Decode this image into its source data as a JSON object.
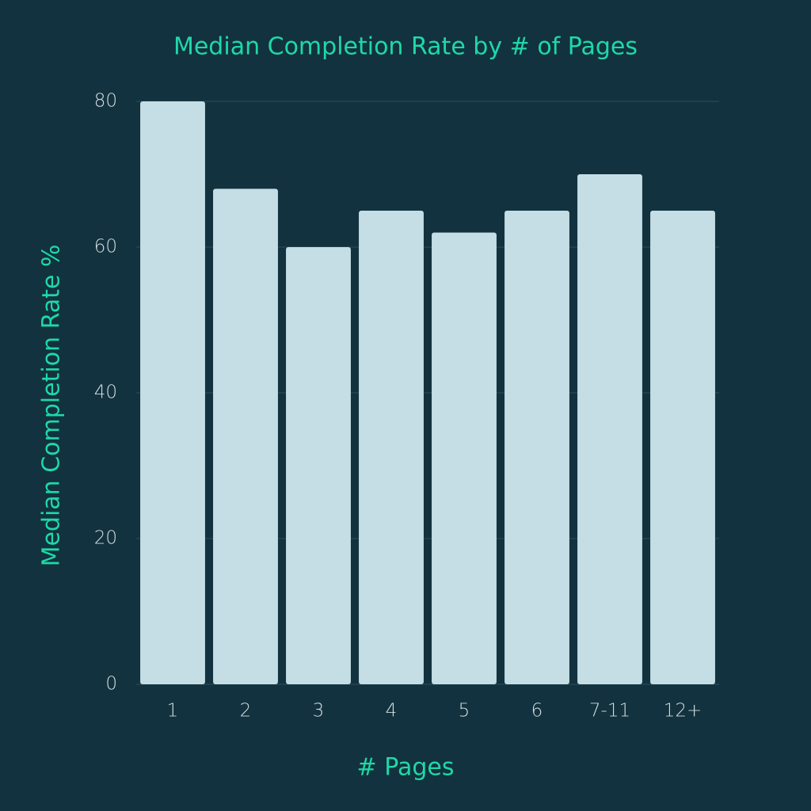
{
  "chart_data": {
    "type": "bar",
    "title": "Median Completion Rate by # of Pages",
    "x_label": "# Pages",
    "y_label": "Median Completion Rate %",
    "categories": [
      "1",
      "2",
      "3",
      "4",
      "5",
      "6",
      "7-11",
      "12+"
    ],
    "values": [
      80,
      68,
      60,
      65,
      62,
      65,
      70,
      65
    ],
    "color": "#c5dee6",
    "ylim": [
      0,
      80
    ],
    "yticks": [
      0,
      20,
      40,
      60,
      80
    ],
    "grid": true
  }
}
